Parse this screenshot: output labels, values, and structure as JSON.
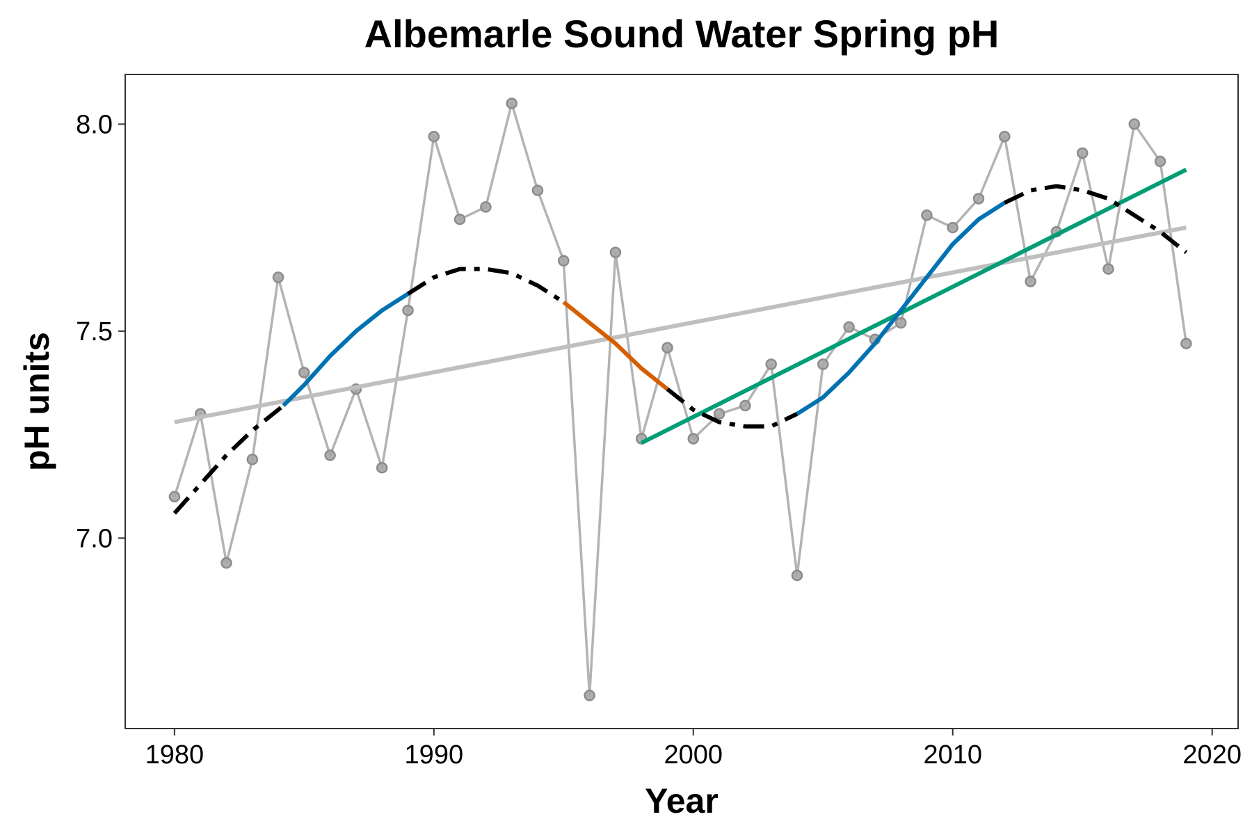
{
  "chart_data": {
    "type": "line",
    "title": "Albemarle Sound Water Spring pH",
    "xlabel": "Year",
    "ylabel": "pH units",
    "xlim": [
      1978.1,
      2021.0
    ],
    "ylim": [
      6.54,
      8.12
    ],
    "x_ticks": [
      1980,
      1990,
      2000,
      2010,
      2020
    ],
    "y_ticks": [
      7.0,
      7.5,
      8.0
    ],
    "y_tick_labels": [
      "7.0",
      "7.5",
      "8.0"
    ],
    "grid": false,
    "colors": {
      "observed": "#b3b3b3",
      "long_trend": "#bfbfbf",
      "recent_trend": "#009E73",
      "smooth_stable": "#000000",
      "smooth_increasing": "#0072B2",
      "smooth_decreasing": "#D55E00"
    },
    "observed": {
      "x": [
        1980,
        1981,
        1982,
        1983,
        1984,
        1985,
        1986,
        1987,
        1988,
        1989,
        1990,
        1991,
        1992,
        1993,
        1994,
        1995,
        1996,
        1997,
        1998,
        1999,
        2000,
        2001,
        2002,
        2003,
        2004,
        2005,
        2006,
        2007,
        2008,
        2009,
        2010,
        2011,
        2012,
        2013,
        2014,
        2015,
        2016,
        2017,
        2018,
        2019
      ],
      "y": [
        7.1,
        7.3,
        6.94,
        7.19,
        7.63,
        7.4,
        7.2,
        7.36,
        7.17,
        7.55,
        7.97,
        7.77,
        7.8,
        8.05,
        7.84,
        7.67,
        6.62,
        7.69,
        7.24,
        7.46,
        7.24,
        7.3,
        7.32,
        7.42,
        6.91,
        7.42,
        7.51,
        7.48,
        7.52,
        7.78,
        7.75,
        7.82,
        7.97,
        7.62,
        7.74,
        7.93,
        7.65,
        8.0,
        7.91,
        7.47
      ]
    },
    "trend_lines": [
      {
        "x": [
          1980,
          2019
        ],
        "y": [
          7.28,
          7.75
        ],
        "style": "long_trend"
      },
      {
        "x": [
          1998,
          2019
        ],
        "y": [
          7.23,
          7.89
        ],
        "style": "recent_trend"
      }
    ],
    "smooth_segments": [
      {
        "style": "smooth_stable",
        "dash": "dashdot",
        "x": [
          1980,
          1981,
          1982,
          1983,
          1984.2
        ],
        "y": [
          7.06,
          7.13,
          7.2,
          7.26,
          7.32
        ]
      },
      {
        "style": "smooth_increasing",
        "dash": "solid",
        "x": [
          1984.2,
          1985,
          1986,
          1987,
          1988,
          1989
        ],
        "y": [
          7.32,
          7.37,
          7.44,
          7.5,
          7.55,
          7.59
        ]
      },
      {
        "style": "smooth_stable",
        "dash": "dashdot",
        "x": [
          1989,
          1990,
          1991,
          1992,
          1993,
          1994,
          1995
        ],
        "y": [
          7.59,
          7.63,
          7.65,
          7.65,
          7.64,
          7.61,
          7.57
        ]
      },
      {
        "style": "smooth_decreasing",
        "dash": "solid",
        "x": [
          1995,
          1996,
          1997,
          1998,
          1999
        ],
        "y": [
          7.57,
          7.52,
          7.47,
          7.41,
          7.36
        ]
      },
      {
        "style": "smooth_stable",
        "dash": "dashdot",
        "x": [
          1999,
          2000,
          2001,
          2002,
          2003,
          2004
        ],
        "y": [
          7.36,
          7.31,
          7.28,
          7.27,
          7.27,
          7.3
        ]
      },
      {
        "style": "smooth_increasing",
        "dash": "solid",
        "x": [
          2004,
          2005,
          2006,
          2007,
          2008,
          2009,
          2010,
          2011,
          2012
        ],
        "y": [
          7.3,
          7.34,
          7.4,
          7.47,
          7.55,
          7.63,
          7.71,
          7.77,
          7.81
        ]
      },
      {
        "style": "smooth_stable",
        "dash": "dashdot",
        "x": [
          2012,
          2013,
          2014,
          2015,
          2016,
          2017,
          2018,
          2019
        ],
        "y": [
          7.81,
          7.84,
          7.85,
          7.84,
          7.82,
          7.78,
          7.74,
          7.69
        ]
      }
    ]
  }
}
